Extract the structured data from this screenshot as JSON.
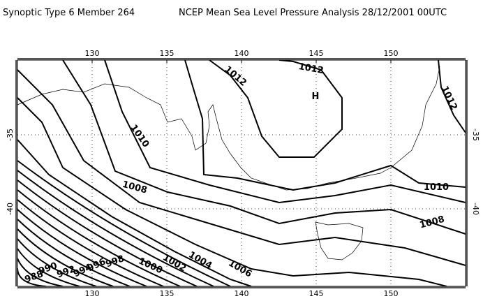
{
  "header": {
    "left_title": "Synoptic Type 6 Member 264",
    "right_title": "NCEP Mean Sea Level Pressure Analysis 28/12/2001 00UTC"
  },
  "axes": {
    "longitudes": [
      130,
      135,
      140,
      145,
      150
    ],
    "latitudes": [
      -35,
      -40
    ]
  },
  "high_label": "H",
  "contour_labels": [
    1012,
    1012,
    1012,
    1010,
    1010,
    1008,
    1008,
    1006,
    1004,
    1002,
    1000,
    998,
    996,
    994,
    992,
    990,
    988
  ]
}
